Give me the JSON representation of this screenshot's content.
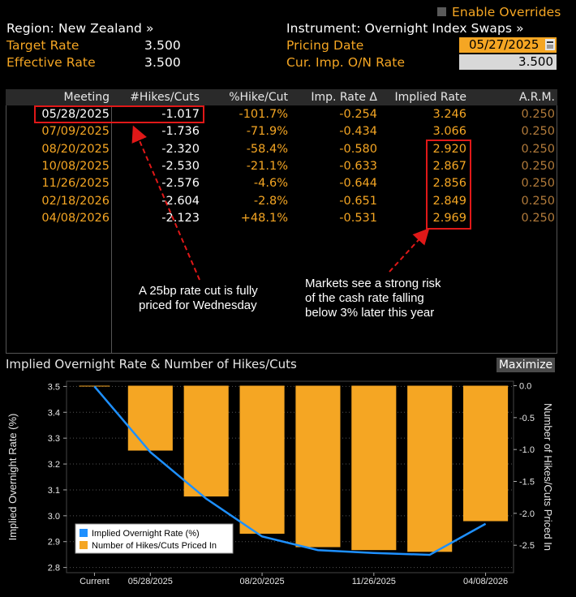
{
  "header": {
    "region_label": "Region: New Zealand »",
    "instrument_label": "Instrument: Overnight Index Swaps »",
    "enable_overrides": "Enable Overrides",
    "target_rate_label": "Target Rate",
    "target_rate_value": "3.500",
    "effective_rate_label": "Effective Rate",
    "effective_rate_value": "3.500",
    "pricing_date_label": "Pricing Date",
    "pricing_date_value": "05/27/2025",
    "cur_imp_label": "Cur. Imp. O/N Rate",
    "cur_imp_value": "3.500"
  },
  "table": {
    "headers": [
      "Meeting",
      "#Hikes/Cuts",
      "%Hike/Cut",
      "Imp. Rate Δ",
      "Implied Rate",
      "A.R.M."
    ],
    "rows": [
      [
        "05/28/2025",
        "-1.017",
        "-101.7%",
        "-0.254",
        "3.246",
        "0.250"
      ],
      [
        "07/09/2025",
        "-1.736",
        "-71.9%",
        "-0.434",
        "3.066",
        "0.250"
      ],
      [
        "08/20/2025",
        "-2.320",
        "-58.4%",
        "-0.580",
        "2.920",
        "0.250"
      ],
      [
        "10/08/2025",
        "-2.530",
        "-21.1%",
        "-0.633",
        "2.867",
        "0.250"
      ],
      [
        "11/26/2025",
        "-2.576",
        "-4.6%",
        "-0.644",
        "2.856",
        "0.250"
      ],
      [
        "02/18/2026",
        "-2.604",
        "-2.8%",
        "-0.651",
        "2.849",
        "0.250"
      ],
      [
        "04/08/2026",
        "-2.123",
        "+48.1%",
        "-0.531",
        "2.969",
        "0.250"
      ]
    ]
  },
  "annotations": {
    "left_line1": "A 25bp rate cut is fully",
    "left_line2": "priced for Wednesday",
    "right_line1": "Markets see a strong risk",
    "right_line2": "of the cash rate falling",
    "right_line3": "below 3% later this year"
  },
  "chart_panel": {
    "title": "Implied Overnight Rate & Number of Hikes/Cuts",
    "maximize_label": "Maximize"
  },
  "colors": {
    "orange": "#f5a623",
    "blue": "#1e90ff",
    "red": "#e01818"
  },
  "chart_data": {
    "type": "bar",
    "categories": [
      "Current",
      "05/28/2025",
      "07/09/2025",
      "08/20/2025",
      "10/08/2025",
      "11/26/2025",
      "02/18/2026",
      "04/08/2026"
    ],
    "x_tick_labels": [
      "Current",
      "05/28/2025",
      "08/20/2025",
      "11/26/2025",
      "04/08/2026"
    ],
    "series": [
      {
        "name": "Implied Overnight Rate (%)",
        "type": "line",
        "axis": "left",
        "values": [
          3.5,
          3.246,
          3.066,
          2.92,
          2.867,
          2.856,
          2.849,
          2.969
        ]
      },
      {
        "name": "Number of Hikes/Cuts Priced In",
        "type": "bar",
        "axis": "right",
        "values": [
          0,
          -1.017,
          -1.736,
          -2.32,
          -2.53,
          -2.576,
          -2.604,
          -2.123
        ]
      }
    ],
    "ylabel": "Implied Overnight Rate (%)",
    "y2label": "Number of Hikes/Cuts Priced In",
    "ylim": [
      2.78,
      3.52
    ],
    "y2lim": [
      -2.93,
      0.07
    ],
    "yticks": [
      "3.5",
      "3.4",
      "3.3",
      "3.2",
      "3.1",
      "3.0",
      "2.9",
      "2.8"
    ],
    "y2ticks": [
      "0.0",
      "-0.5",
      "-1.0",
      "-1.5",
      "-2.0",
      "-2.5"
    ],
    "legend": "bottom-left",
    "grid": true
  }
}
